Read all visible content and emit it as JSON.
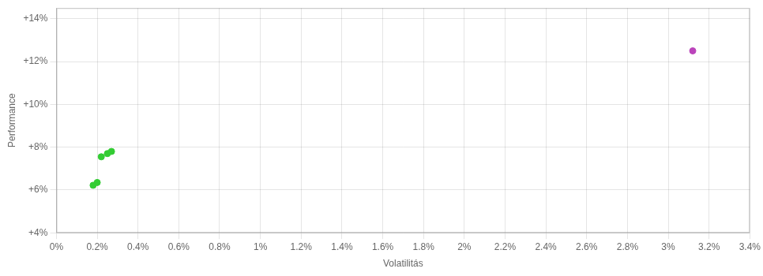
{
  "chart_data": {
    "type": "scatter",
    "xlabel": "Volatilitás",
    "ylabel": "Performance",
    "xlim": [
      0,
      0.034
    ],
    "ylim": [
      0.04,
      0.145
    ],
    "xticks": [
      {
        "value": 0,
        "label": "0%"
      },
      {
        "value": 0.002,
        "label": "0.2%"
      },
      {
        "value": 0.004,
        "label": "0.4%"
      },
      {
        "value": 0.006,
        "label": "0.6%"
      },
      {
        "value": 0.008,
        "label": "0.8%"
      },
      {
        "value": 0.01,
        "label": "1%"
      },
      {
        "value": 0.012,
        "label": "1.2%"
      },
      {
        "value": 0.014,
        "label": "1.4%"
      },
      {
        "value": 0.016,
        "label": "1.6%"
      },
      {
        "value": 0.018,
        "label": "1.8%"
      },
      {
        "value": 0.02,
        "label": "2%"
      },
      {
        "value": 0.022,
        "label": "2.2%"
      },
      {
        "value": 0.024,
        "label": "2.4%"
      },
      {
        "value": 0.026,
        "label": "2.6%"
      },
      {
        "value": 0.028,
        "label": "2.8%"
      },
      {
        "value": 0.03,
        "label": "3%"
      },
      {
        "value": 0.032,
        "label": "3.2%"
      },
      {
        "value": 0.034,
        "label": "3.4%"
      }
    ],
    "yticks": [
      {
        "value": 0.04,
        "label": "+4%"
      },
      {
        "value": 0.06,
        "label": "+6%"
      },
      {
        "value": 0.08,
        "label": "+8%"
      },
      {
        "value": 0.1,
        "label": "+10%"
      },
      {
        "value": 0.12,
        "label": "+12%"
      },
      {
        "value": 0.14,
        "label": "+14%"
      }
    ],
    "grid": true,
    "series": [
      {
        "color": "#33cc33",
        "marker": "circle",
        "x": [
          0.0022,
          0.0025,
          0.0027,
          0.002,
          0.0018
        ],
        "values": [
          0.0755,
          0.077,
          0.078,
          0.0635,
          0.0622
        ]
      },
      {
        "color": "#bb44bb",
        "marker": "circle",
        "x": [
          0.0312
        ],
        "values": [
          0.125
        ]
      }
    ]
  }
}
